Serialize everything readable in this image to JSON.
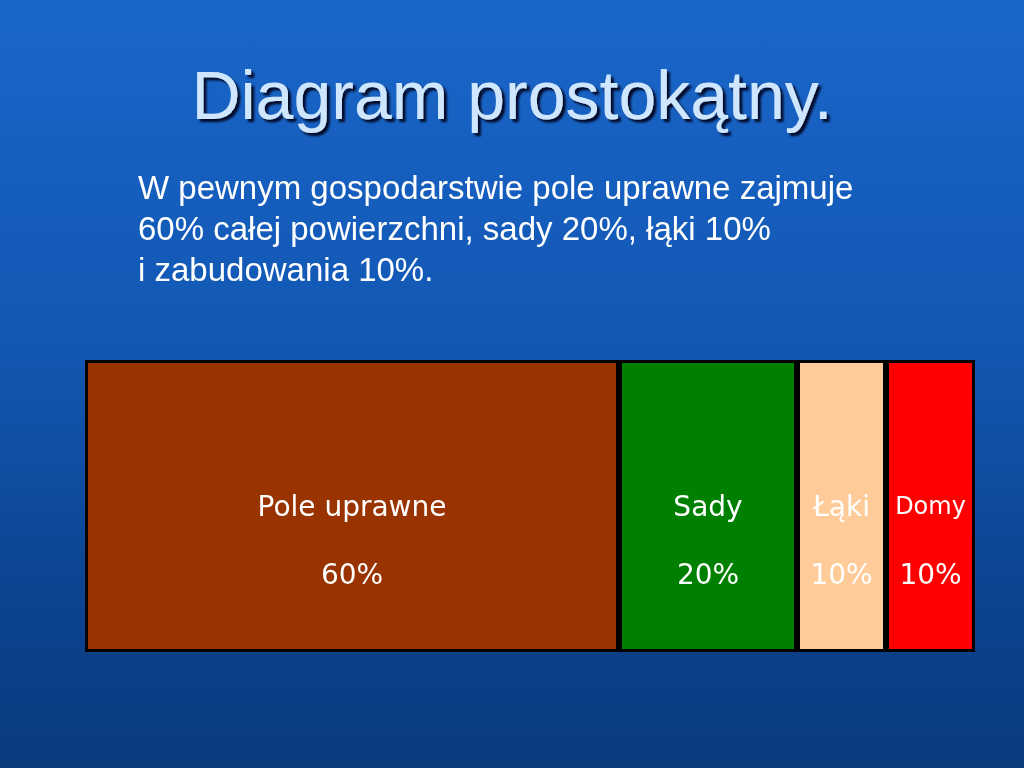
{
  "chart_data": {
    "type": "bar",
    "title": "Diagram prostokątny.",
    "subtitle": "W pewnym gospodarstwie pole uprawne zajmuje\n60% całej powierzchni, sady 20%, łąki 10%\ni zabudowania 10%.",
    "categories": [
      null
    ],
    "orientation": "horizontal",
    "stacked": true,
    "series": [
      {
        "name": "Pole uprawne",
        "color": "#993300",
        "values": [
          60
        ],
        "value_labels": [
          "60%"
        ]
      },
      {
        "name": "Sady",
        "color": "#008000",
        "values": [
          20
        ],
        "value_labels": [
          "20%"
        ]
      },
      {
        "name": "Łąki",
        "color": "#ffcc99",
        "values": [
          10
        ],
        "value_labels": [
          "10%"
        ]
      },
      {
        "name": "Domy",
        "color": "#ff0000",
        "values": [
          10
        ],
        "value_labels": [
          "10%"
        ]
      }
    ],
    "tick_labels": false,
    "grid": false,
    "legend": false
  }
}
